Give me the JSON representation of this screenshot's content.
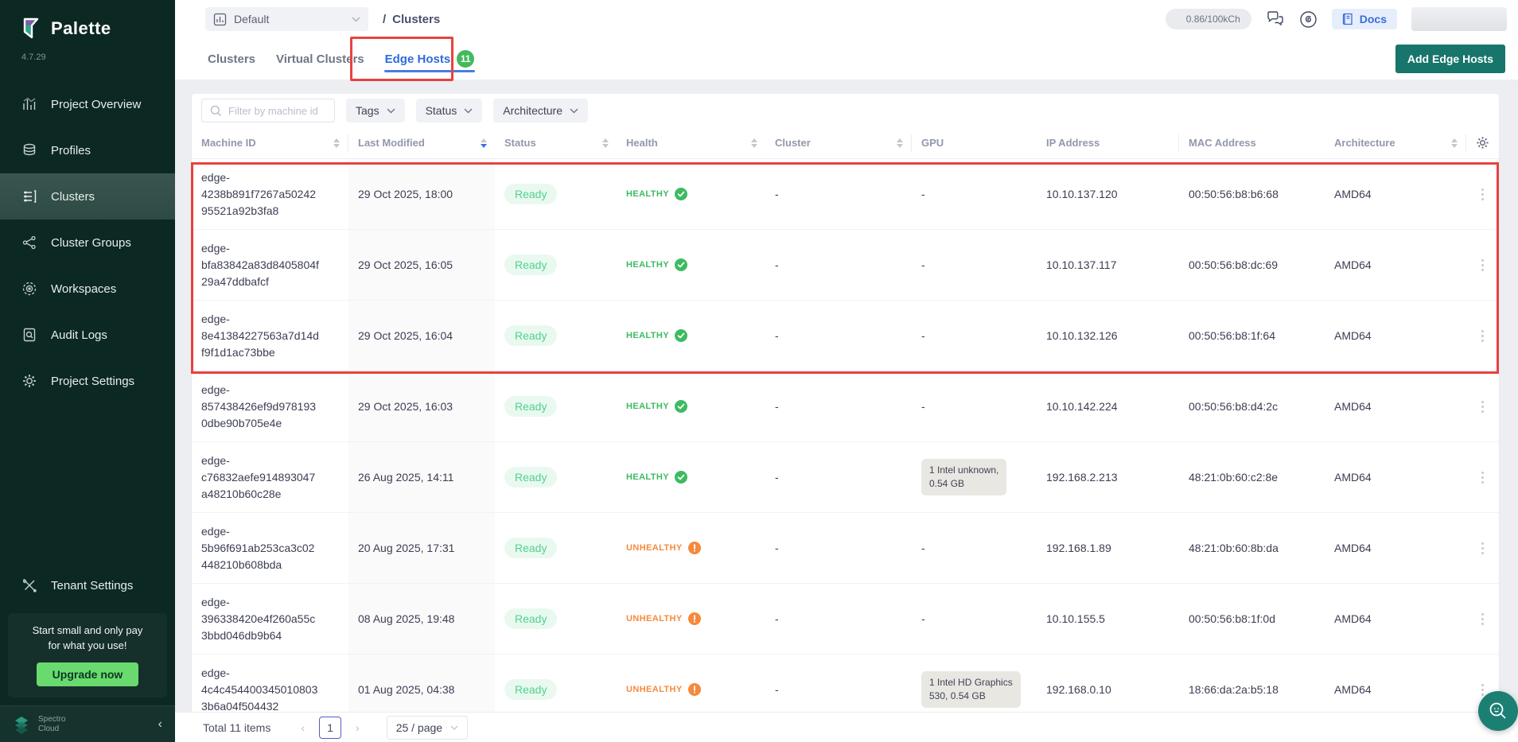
{
  "sidebar": {
    "brand": "Palette",
    "version": "4.7.29",
    "items": [
      {
        "label": "Project Overview",
        "icon": "chart-icon",
        "active": false
      },
      {
        "label": "Profiles",
        "icon": "layers-icon",
        "active": false
      },
      {
        "label": "Clusters",
        "icon": "list-icon",
        "active": true
      },
      {
        "label": "Cluster Groups",
        "icon": "network-icon",
        "active": false
      },
      {
        "label": "Workspaces",
        "icon": "workspace-icon",
        "active": false
      },
      {
        "label": "Audit Logs",
        "icon": "audit-icon",
        "active": false
      },
      {
        "label": "Project Settings",
        "icon": "gear-icon",
        "active": false
      }
    ],
    "tenant_settings": {
      "label": "Tenant Settings",
      "icon": "tools-icon"
    },
    "promo": {
      "line1": "Start small and only pay",
      "line2": "for what you use!",
      "button": "Upgrade now"
    },
    "footer_brand": {
      "line1": "Spectro",
      "line2": "Cloud"
    }
  },
  "topbar": {
    "project_selector": {
      "label": "Default"
    },
    "breadcrumb": {
      "separator": "/",
      "label": "Clusters"
    },
    "usage_badge": "0.86/100kCh",
    "docs_button": "Docs"
  },
  "tabs": {
    "items": [
      {
        "label": "Clusters",
        "badge": "",
        "active": false
      },
      {
        "label": "Virtual Clusters",
        "badge": "",
        "active": false
      },
      {
        "label": "Edge Hosts",
        "badge": "11",
        "active": true
      }
    ]
  },
  "add_button": "Add Edge Hosts",
  "filters": {
    "search_placeholder": "Filter by machine id",
    "dropdowns": [
      {
        "label": "Tags"
      },
      {
        "label": "Status"
      },
      {
        "label": "Architecture"
      }
    ]
  },
  "table": {
    "columns": [
      {
        "label": "Machine ID",
        "sortable": true,
        "sorted": ""
      },
      {
        "label": "Last Modified",
        "sortable": true,
        "sorted": "desc"
      },
      {
        "label": "Status",
        "sortable": true,
        "sorted": ""
      },
      {
        "label": "Health",
        "sortable": true,
        "sorted": ""
      },
      {
        "label": "Cluster",
        "sortable": true,
        "sorted": ""
      },
      {
        "label": "GPU",
        "sortable": false,
        "sorted": ""
      },
      {
        "label": "IP Address",
        "sortable": false,
        "sorted": ""
      },
      {
        "label": "MAC Address",
        "sortable": false,
        "sorted": ""
      },
      {
        "label": "Architecture",
        "sortable": true,
        "sorted": ""
      }
    ],
    "rows": [
      {
        "machine_id": "edge-4238b891f7267a5024295521a92b3fa8",
        "last_modified": "29 Oct 2025, 18:00",
        "status": "Ready",
        "health": "HEALTHY",
        "health_state": "healthy",
        "cluster": "-",
        "gpu_line1": "",
        "gpu_line2": "",
        "ip": "10.10.137.120",
        "mac": "00:50:56:b8:b6:68",
        "arch": "AMD64"
      },
      {
        "machine_id": "edge-bfa83842a83d8405804f29a47ddbafcf",
        "last_modified": "29 Oct 2025, 16:05",
        "status": "Ready",
        "health": "HEALTHY",
        "health_state": "healthy",
        "cluster": "-",
        "gpu_line1": "",
        "gpu_line2": "",
        "ip": "10.10.137.117",
        "mac": "00:50:56:b8:dc:69",
        "arch": "AMD64"
      },
      {
        "machine_id": "edge-8e41384227563a7d14df9f1d1ac73bbe",
        "last_modified": "29 Oct 2025, 16:04",
        "status": "Ready",
        "health": "HEALTHY",
        "health_state": "healthy",
        "cluster": "-",
        "gpu_line1": "",
        "gpu_line2": "",
        "ip": "10.10.132.126",
        "mac": "00:50:56:b8:1f:64",
        "arch": "AMD64"
      },
      {
        "machine_id": "edge-857438426ef9d9781930dbe90b705e4e",
        "last_modified": "29 Oct 2025, 16:03",
        "status": "Ready",
        "health": "HEALTHY",
        "health_state": "healthy",
        "cluster": "-",
        "gpu_line1": "",
        "gpu_line2": "",
        "ip": "10.10.142.224",
        "mac": "00:50:56:b8:d4:2c",
        "arch": "AMD64"
      },
      {
        "machine_id": "edge-c76832aefe914893047a48210b60c28e",
        "last_modified": "26 Aug 2025, 14:11",
        "status": "Ready",
        "health": "HEALTHY",
        "health_state": "healthy",
        "cluster": "-",
        "gpu_line1": "1 Intel unknown,",
        "gpu_line2": "0.54 GB",
        "ip": "192.168.2.213",
        "mac": "48:21:0b:60:c2:8e",
        "arch": "AMD64"
      },
      {
        "machine_id": "edge-5b96f691ab253ca3c02448210b608bda",
        "last_modified": "20 Aug 2025, 17:31",
        "status": "Ready",
        "health": "UNHEALTHY",
        "health_state": "unhealthy",
        "cluster": "-",
        "gpu_line1": "",
        "gpu_line2": "",
        "ip": "192.168.1.89",
        "mac": "48:21:0b:60:8b:da",
        "arch": "AMD64"
      },
      {
        "machine_id": "edge-396338420e4f260a55c3bbd046db9b64",
        "last_modified": "08 Aug 2025, 19:48",
        "status": "Ready",
        "health": "UNHEALTHY",
        "health_state": "unhealthy",
        "cluster": "-",
        "gpu_line1": "",
        "gpu_line2": "",
        "ip": "10.10.155.5",
        "mac": "00:50:56:b8:1f:0d",
        "arch": "AMD64"
      },
      {
        "machine_id": "edge-4c4c4544003450108033b6a04f504432",
        "last_modified": "01 Aug 2025, 04:38",
        "status": "Ready",
        "health": "UNHEALTHY",
        "health_state": "unhealthy",
        "cluster": "-",
        "gpu_line1": "1 Intel HD Graphics",
        "gpu_line2": "530, 0.54 GB",
        "ip": "192.168.0.10",
        "mac": "18:66:da:2a:b5:18",
        "arch": "AMD64"
      }
    ]
  },
  "pagination": {
    "total": "Total 11 items",
    "current_page": "1",
    "page_size": "25 / page"
  },
  "colors": {
    "sidebar_bg": "#0c2823",
    "accent_teal": "#17756b",
    "active_blue": "#2f6bdf",
    "healthy_green": "#3dbb61",
    "unhealthy_orange": "#f68a3c",
    "ready_green": "#50d28e",
    "badge_green": "#43b95e",
    "upgrade_green": "#69da6e",
    "annotation_red": "#e9423f"
  }
}
